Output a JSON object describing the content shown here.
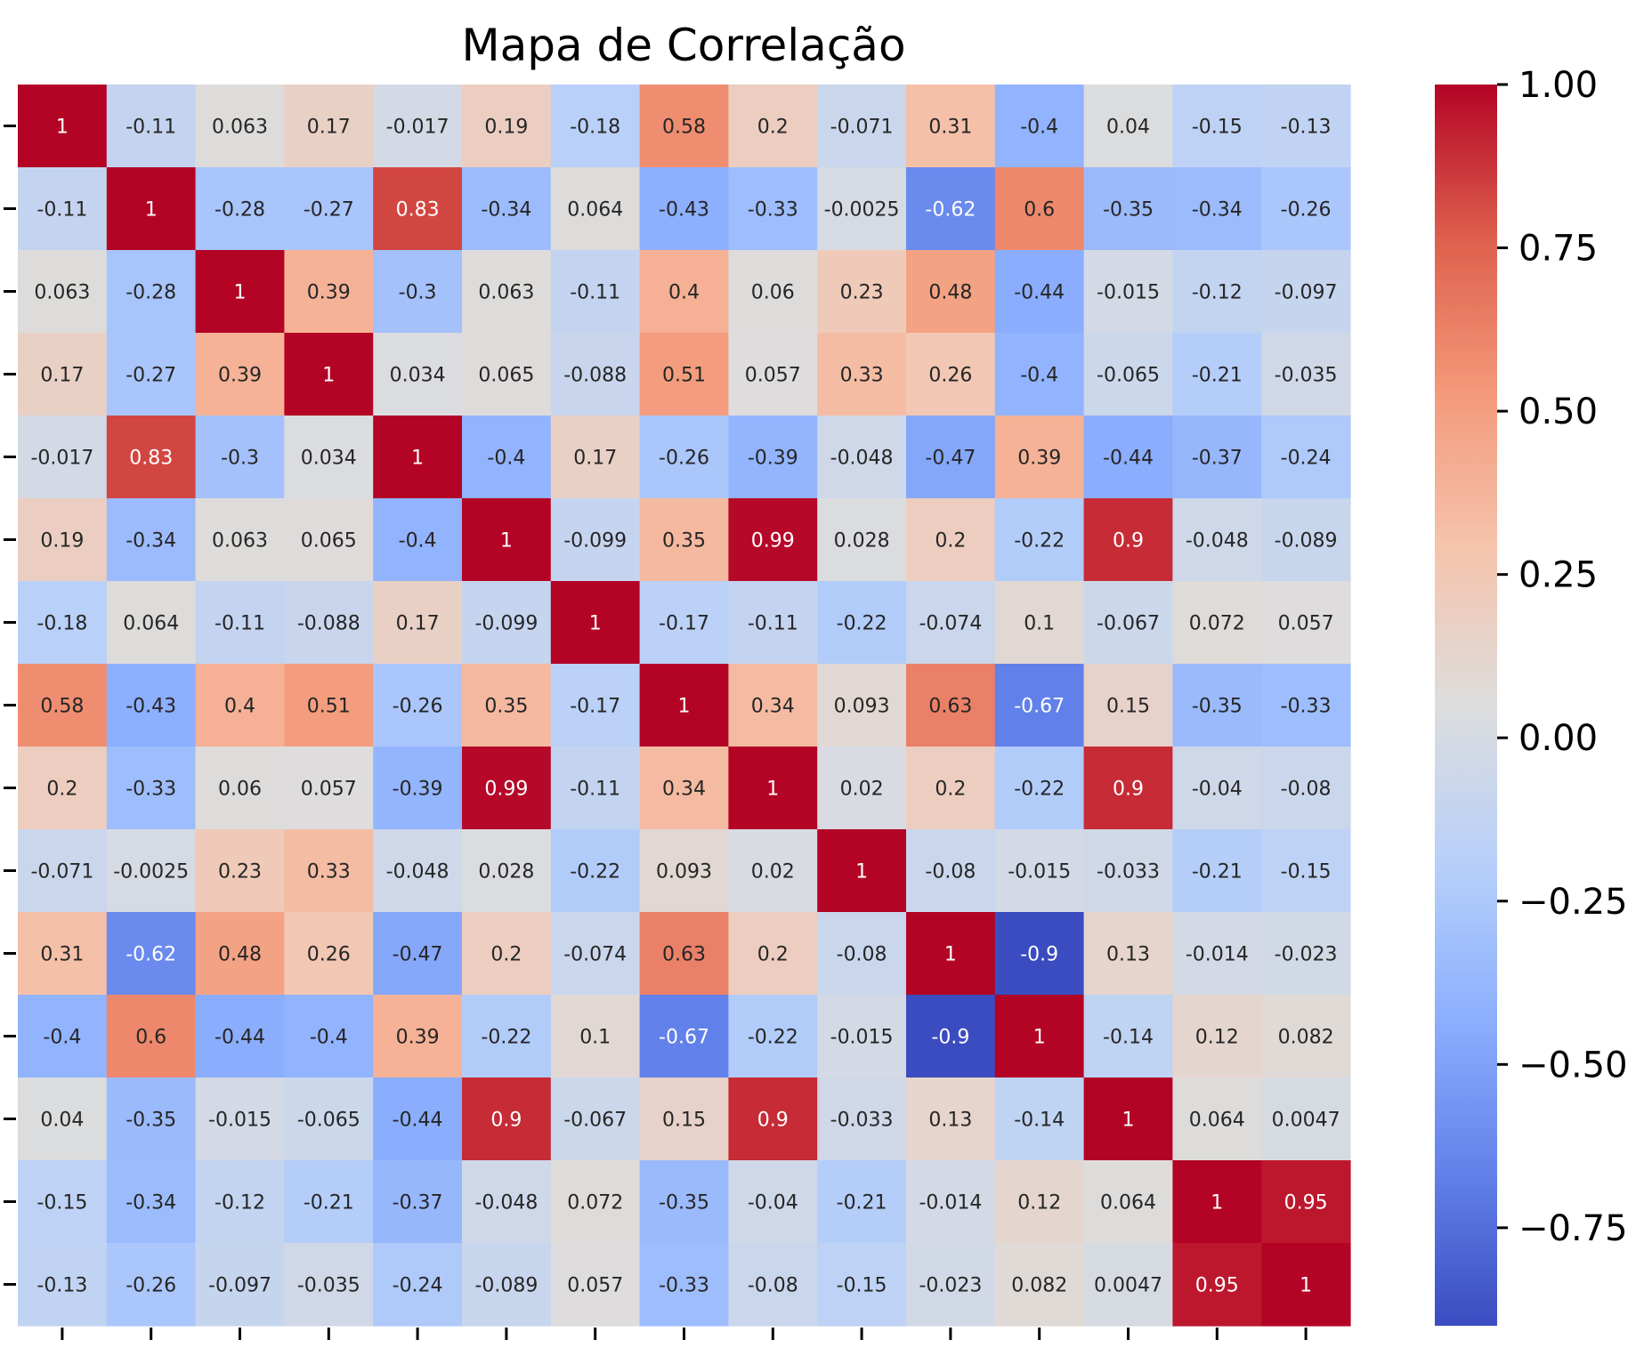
{
  "chart_data": {
    "type": "heatmap",
    "title": "Mapa de Correlação",
    "colormap": "coolwarm",
    "vmin": -0.9,
    "vmax": 1.0,
    "xtick_labels_visible": false,
    "ytick_labels_visible": false,
    "colorbar": {
      "ticks": [
        1.0,
        0.75,
        0.5,
        0.25,
        0.0,
        -0.25,
        -0.5,
        -0.75
      ],
      "tick_labels": [
        "1.00",
        "0.75",
        "0.50",
        "0.25",
        "0.00",
        "−0.25",
        "−0.50",
        "−0.75"
      ]
    },
    "values": [
      [
        1,
        -0.11,
        0.063,
        0.17,
        -0.017,
        0.19,
        -0.18,
        0.58,
        0.2,
        -0.071,
        0.31,
        -0.4,
        0.04,
        -0.15,
        -0.13
      ],
      [
        -0.11,
        1,
        -0.28,
        -0.27,
        0.83,
        -0.34,
        0.064,
        -0.43,
        -0.33,
        -0.0025,
        -0.62,
        0.6,
        -0.35,
        -0.34,
        -0.26
      ],
      [
        0.063,
        -0.28,
        1,
        0.39,
        -0.3,
        0.063,
        -0.11,
        0.4,
        0.06,
        0.23,
        0.48,
        -0.44,
        -0.015,
        -0.12,
        -0.097
      ],
      [
        0.17,
        -0.27,
        0.39,
        1,
        0.034,
        0.065,
        -0.088,
        0.51,
        0.057,
        0.33,
        0.26,
        -0.4,
        -0.065,
        -0.21,
        -0.035
      ],
      [
        -0.017,
        0.83,
        -0.3,
        0.034,
        1,
        -0.4,
        0.17,
        -0.26,
        -0.39,
        -0.048,
        -0.47,
        0.39,
        -0.44,
        -0.37,
        -0.24
      ],
      [
        0.19,
        -0.34,
        0.063,
        0.065,
        -0.4,
        1,
        -0.099,
        0.35,
        0.99,
        0.028,
        0.2,
        -0.22,
        0.9,
        -0.048,
        -0.089
      ],
      [
        -0.18,
        0.064,
        -0.11,
        -0.088,
        0.17,
        -0.099,
        1,
        -0.17,
        -0.11,
        -0.22,
        -0.074,
        0.1,
        -0.067,
        0.072,
        0.057
      ],
      [
        0.58,
        -0.43,
        0.4,
        0.51,
        -0.26,
        0.35,
        -0.17,
        1,
        0.34,
        0.093,
        0.63,
        -0.67,
        0.15,
        -0.35,
        -0.33
      ],
      [
        0.2,
        -0.33,
        0.06,
        0.057,
        -0.39,
        0.99,
        -0.11,
        0.34,
        1,
        0.02,
        0.2,
        -0.22,
        0.9,
        -0.04,
        -0.08
      ],
      [
        -0.071,
        -0.0025,
        0.23,
        0.33,
        -0.048,
        0.028,
        -0.22,
        0.093,
        0.02,
        1,
        -0.08,
        -0.015,
        -0.033,
        -0.21,
        -0.15
      ],
      [
        0.31,
        -0.62,
        0.48,
        0.26,
        -0.47,
        0.2,
        -0.074,
        0.63,
        0.2,
        -0.08,
        1,
        -0.9,
        0.13,
        -0.014,
        -0.023
      ],
      [
        -0.4,
        0.6,
        -0.44,
        -0.4,
        0.39,
        -0.22,
        0.1,
        -0.67,
        -0.22,
        -0.015,
        -0.9,
        1,
        -0.14,
        0.12,
        0.082
      ],
      [
        0.04,
        -0.35,
        -0.015,
        -0.065,
        -0.44,
        0.9,
        -0.067,
        0.15,
        0.9,
        -0.033,
        0.13,
        -0.14,
        1,
        0.064,
        0.0047
      ],
      [
        -0.15,
        -0.34,
        -0.12,
        -0.21,
        -0.37,
        -0.048,
        0.072,
        -0.35,
        -0.04,
        -0.21,
        -0.014,
        0.12,
        0.064,
        1,
        0.95
      ],
      [
        -0.13,
        -0.26,
        -0.097,
        -0.035,
        -0.24,
        -0.089,
        0.057,
        -0.33,
        -0.08,
        -0.15,
        -0.023,
        0.082,
        0.0047,
        0.95,
        1
      ]
    ],
    "cell_labels": [
      [
        "1",
        "-0.11",
        "0.063",
        "0.17",
        "-0.017",
        "0.19",
        "-0.18",
        "0.58",
        "0.2",
        "-0.071",
        "0.31",
        "-0.4",
        "0.04",
        "-0.15",
        "-0.13"
      ],
      [
        "-0.11",
        "1",
        "-0.28",
        "-0.27",
        "0.83",
        "-0.34",
        "0.064",
        "-0.43",
        "-0.33",
        "-0.0025",
        "-0.62",
        "0.6",
        "-0.35",
        "-0.34",
        "-0.26"
      ],
      [
        "0.063",
        "-0.28",
        "1",
        "0.39",
        "-0.3",
        "0.063",
        "-0.11",
        "0.4",
        "0.06",
        "0.23",
        "0.48",
        "-0.44",
        "-0.015",
        "-0.12",
        "-0.097"
      ],
      [
        "0.17",
        "-0.27",
        "0.39",
        "1",
        "0.034",
        "0.065",
        "-0.088",
        "0.51",
        "0.057",
        "0.33",
        "0.26",
        "-0.4",
        "-0.065",
        "-0.21",
        "-0.035"
      ],
      [
        "-0.017",
        "0.83",
        "-0.3",
        "0.034",
        "1",
        "-0.4",
        "0.17",
        "-0.26",
        "-0.39",
        "-0.048",
        "-0.47",
        "0.39",
        "-0.44",
        "-0.37",
        "-0.24"
      ],
      [
        "0.19",
        "-0.34",
        "0.063",
        "0.065",
        "-0.4",
        "1",
        "-0.099",
        "0.35",
        "0.99",
        "0.028",
        "0.2",
        "-0.22",
        "0.9",
        "-0.048",
        "-0.089"
      ],
      [
        "-0.18",
        "0.064",
        "-0.11",
        "-0.088",
        "0.17",
        "-0.099",
        "1",
        "-0.17",
        "-0.11",
        "-0.22",
        "-0.074",
        "0.1",
        "-0.067",
        "0.072",
        "0.057"
      ],
      [
        "0.58",
        "-0.43",
        "0.4",
        "0.51",
        "-0.26",
        "0.35",
        "-0.17",
        "1",
        "0.34",
        "0.093",
        "0.63",
        "-0.67",
        "0.15",
        "-0.35",
        "-0.33"
      ],
      [
        "0.2",
        "-0.33",
        "0.06",
        "0.057",
        "-0.39",
        "0.99",
        "-0.11",
        "0.34",
        "1",
        "0.02",
        "0.2",
        "-0.22",
        "0.9",
        "-0.04",
        "-0.08"
      ],
      [
        "-0.071",
        "-0.0025",
        "0.23",
        "0.33",
        "-0.048",
        "0.028",
        "-0.22",
        "0.093",
        "0.02",
        "1",
        "-0.08",
        "-0.015",
        "-0.033",
        "-0.21",
        "-0.15"
      ],
      [
        "0.31",
        "-0.62",
        "0.48",
        "0.26",
        "-0.47",
        "0.2",
        "-0.074",
        "0.63",
        "0.2",
        "-0.08",
        "1",
        "-0.9",
        "0.13",
        "-0.014",
        "-0.023"
      ],
      [
        "-0.4",
        "0.6",
        "-0.44",
        "-0.4",
        "0.39",
        "-0.22",
        "0.1",
        "-0.67",
        "-0.22",
        "-0.015",
        "-0.9",
        "1",
        "-0.14",
        "0.12",
        "0.082"
      ],
      [
        "0.04",
        "-0.35",
        "-0.015",
        "-0.065",
        "-0.44",
        "0.9",
        "-0.067",
        "0.15",
        "0.9",
        "-0.033",
        "0.13",
        "-0.14",
        "1",
        "0.064",
        "0.0047"
      ],
      [
        "-0.15",
        "-0.34",
        "-0.12",
        "-0.21",
        "-0.37",
        "-0.048",
        "0.072",
        "-0.35",
        "-0.04",
        "-0.21",
        "-0.014",
        "0.12",
        "0.064",
        "1",
        "0.95"
      ],
      [
        "-0.13",
        "-0.26",
        "-0.097",
        "-0.035",
        "-0.24",
        "-0.089",
        "0.057",
        "-0.33",
        "-0.08",
        "-0.15",
        "-0.023",
        "0.082",
        "0.0047",
        "0.95",
        "1"
      ]
    ]
  }
}
